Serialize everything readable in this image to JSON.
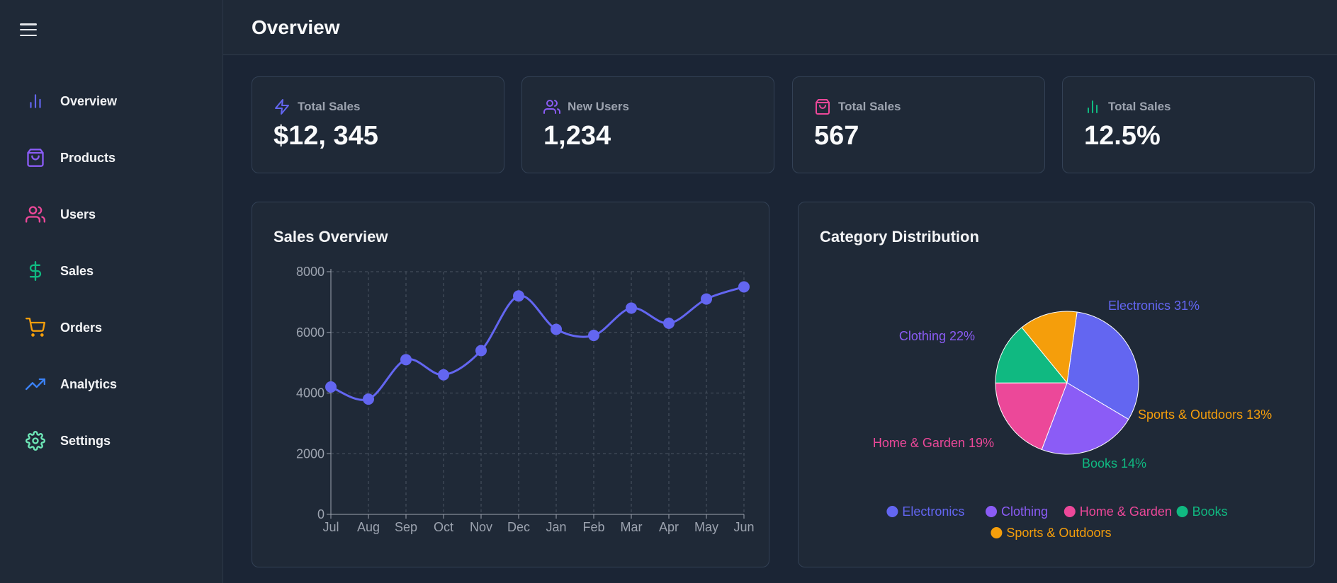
{
  "header": {
    "title": "Overview"
  },
  "sidebar": {
    "items": [
      {
        "label": "Overview",
        "icon": "bar-chart-icon",
        "color": "#6366f1"
      },
      {
        "label": "Products",
        "icon": "shopping-bag-icon",
        "color": "#8b5cf6"
      },
      {
        "label": "Users",
        "icon": "users-icon",
        "color": "#ec4899"
      },
      {
        "label": "Sales",
        "icon": "dollar-sign-icon",
        "color": "#10b981"
      },
      {
        "label": "Orders",
        "icon": "shopping-cart-icon",
        "color": "#f59e0b"
      },
      {
        "label": "Analytics",
        "icon": "trending-up-icon",
        "color": "#3b82f6"
      },
      {
        "label": "Settings",
        "icon": "settings-icon",
        "color": "#6ee7b7"
      }
    ]
  },
  "stats": [
    {
      "label": "Total Sales",
      "value": "$12, 345",
      "icon": "zap-icon",
      "color": "#6366f1"
    },
    {
      "label": "New Users",
      "value": "1,234",
      "icon": "users-icon",
      "color": "#8b5cf6"
    },
    {
      "label": "Total Sales",
      "value": "567",
      "icon": "shopping-bag-icon",
      "color": "#ec4899"
    },
    {
      "label": "Total Sales",
      "value": "12.5%",
      "icon": "bar-chart-icon",
      "color": "#10b981"
    }
  ],
  "sales_panel": {
    "title": "Sales Overview"
  },
  "category_panel": {
    "title": "Category Distribution"
  },
  "chart_data": [
    {
      "type": "line",
      "title": "Sales Overview",
      "categories": [
        "Jul",
        "Aug",
        "Sep",
        "Oct",
        "Nov",
        "Dec",
        "Jan",
        "Feb",
        "Mar",
        "Apr",
        "May",
        "Jun"
      ],
      "series": [
        {
          "values": [
            4200,
            3800,
            5100,
            4600,
            5400,
            7200,
            6100,
            5900,
            6800,
            6300,
            7100,
            7500
          ]
        }
      ],
      "yticks": [
        0,
        2000,
        4000,
        6000,
        8000
      ],
      "ylim": [
        0,
        8000
      ],
      "grid": true,
      "color": "#6366f1"
    },
    {
      "type": "pie",
      "title": "Category Distribution",
      "slices": [
        {
          "name": "Electronics",
          "value": 31,
          "label": "Electronics 31%",
          "color": "#6366f1"
        },
        {
          "name": "Clothing",
          "value": 22,
          "label": "Clothing 22%",
          "color": "#8b5cf6"
        },
        {
          "name": "Home & Garden",
          "value": 19,
          "label": "Home & Garden 19%",
          "color": "#ec4899"
        },
        {
          "name": "Books",
          "value": 14,
          "label": "Books 14%",
          "color": "#10b981"
        },
        {
          "name": "Sports & Outdoors",
          "value": 13,
          "label": "Sports & Outdoors 13%",
          "color": "#f59e0b"
        }
      ],
      "legend": "bottom"
    }
  ]
}
